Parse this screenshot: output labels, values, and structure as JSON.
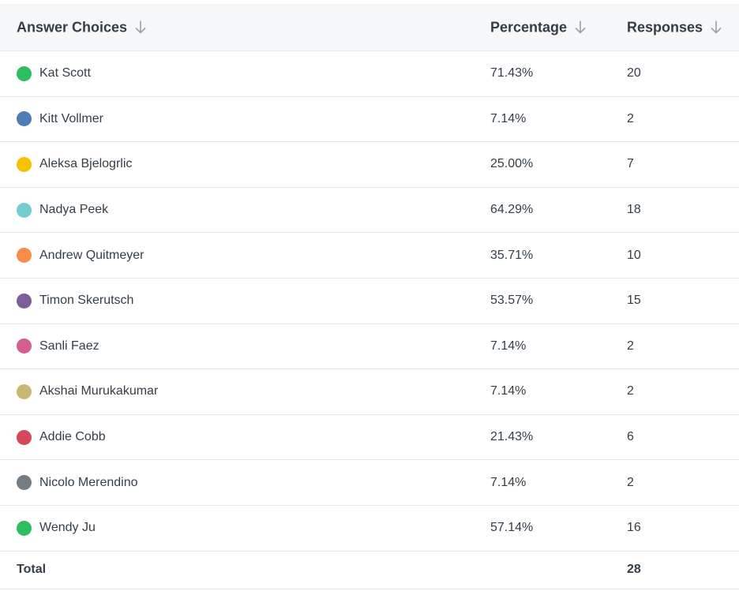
{
  "table": {
    "headers": [
      "Answer Choices",
      "Percentage",
      "Responses"
    ],
    "rows": [
      {
        "label": "Kat Scott",
        "color": "#2dbe60",
        "percentage": "71.43%",
        "responses": 20
      },
      {
        "label": "Kitt Vollmer",
        "color": "#507cb6",
        "percentage": "7.14%",
        "responses": 2
      },
      {
        "label": "Aleksa Bjelogrlic",
        "color": "#f6c200",
        "percentage": "25.00%",
        "responses": 7
      },
      {
        "label": "Nadya Peek",
        "color": "#75cccf",
        "percentage": "64.29%",
        "responses": 18
      },
      {
        "label": "Andrew Quitmeyer",
        "color": "#f88d48",
        "percentage": "35.71%",
        "responses": 10
      },
      {
        "label": "Timon Skerutsch",
        "color": "#7d5e98",
        "percentage": "53.57%",
        "responses": 15
      },
      {
        "label": "Sanli Faez",
        "color": "#d25f90",
        "percentage": "7.14%",
        "responses": 2
      },
      {
        "label": "Akshai Murukakumar",
        "color": "#c8b873",
        "percentage": "7.14%",
        "responses": 2
      },
      {
        "label": "Addie Cobb",
        "color": "#d5485a",
        "percentage": "21.43%",
        "responses": 6
      },
      {
        "label": "Nicolo Merendino",
        "color": "#747c84",
        "percentage": "7.14%",
        "responses": 2
      },
      {
        "label": "Wendy Ju",
        "color": "#2dbe60",
        "percentage": "57.14%",
        "responses": 16
      }
    ],
    "total_label": "Total",
    "total": 28
  }
}
